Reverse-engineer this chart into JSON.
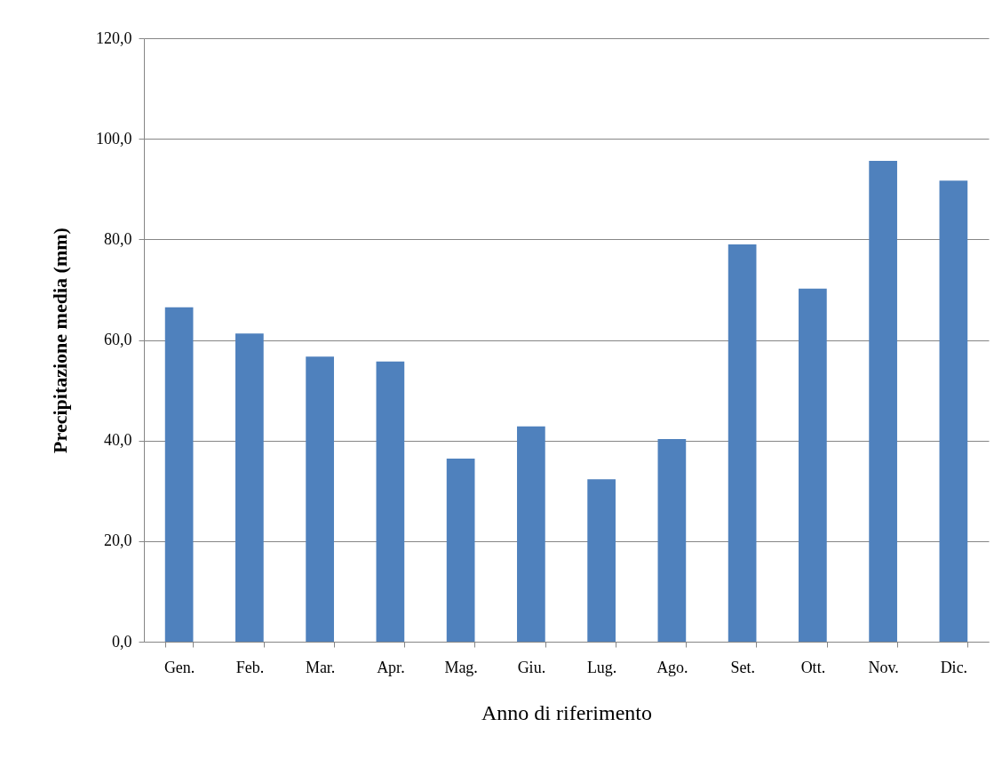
{
  "chart_data": {
    "type": "bar",
    "xlabel": "Anno di riferimento",
    "ylabel": "Precipitazione media (mm)",
    "categories": [
      "Gen.",
      "Feb.",
      "Mar.",
      "Apr.",
      "Mag.",
      "Giu.",
      "Lug.",
      "Ago.",
      "Set.",
      "Ott.",
      "Nov.",
      "Dic."
    ],
    "values": [
      66.5,
      61.3,
      56.7,
      55.7,
      36.4,
      42.8,
      32.3,
      40.3,
      79.0,
      70.2,
      95.6,
      91.7
    ],
    "color": "#4f81bd",
    "ylim": [
      0,
      120
    ],
    "yticks": [
      {
        "value": 0,
        "label": "0,0"
      },
      {
        "value": 20,
        "label": "20,0"
      },
      {
        "value": 40,
        "label": "40,0"
      },
      {
        "value": 60,
        "label": "60,0"
      },
      {
        "value": 80,
        "label": "80,0"
      },
      {
        "value": 100,
        "label": "100,0"
      },
      {
        "value": 120,
        "label": "120,0"
      }
    ],
    "grid": "y"
  }
}
